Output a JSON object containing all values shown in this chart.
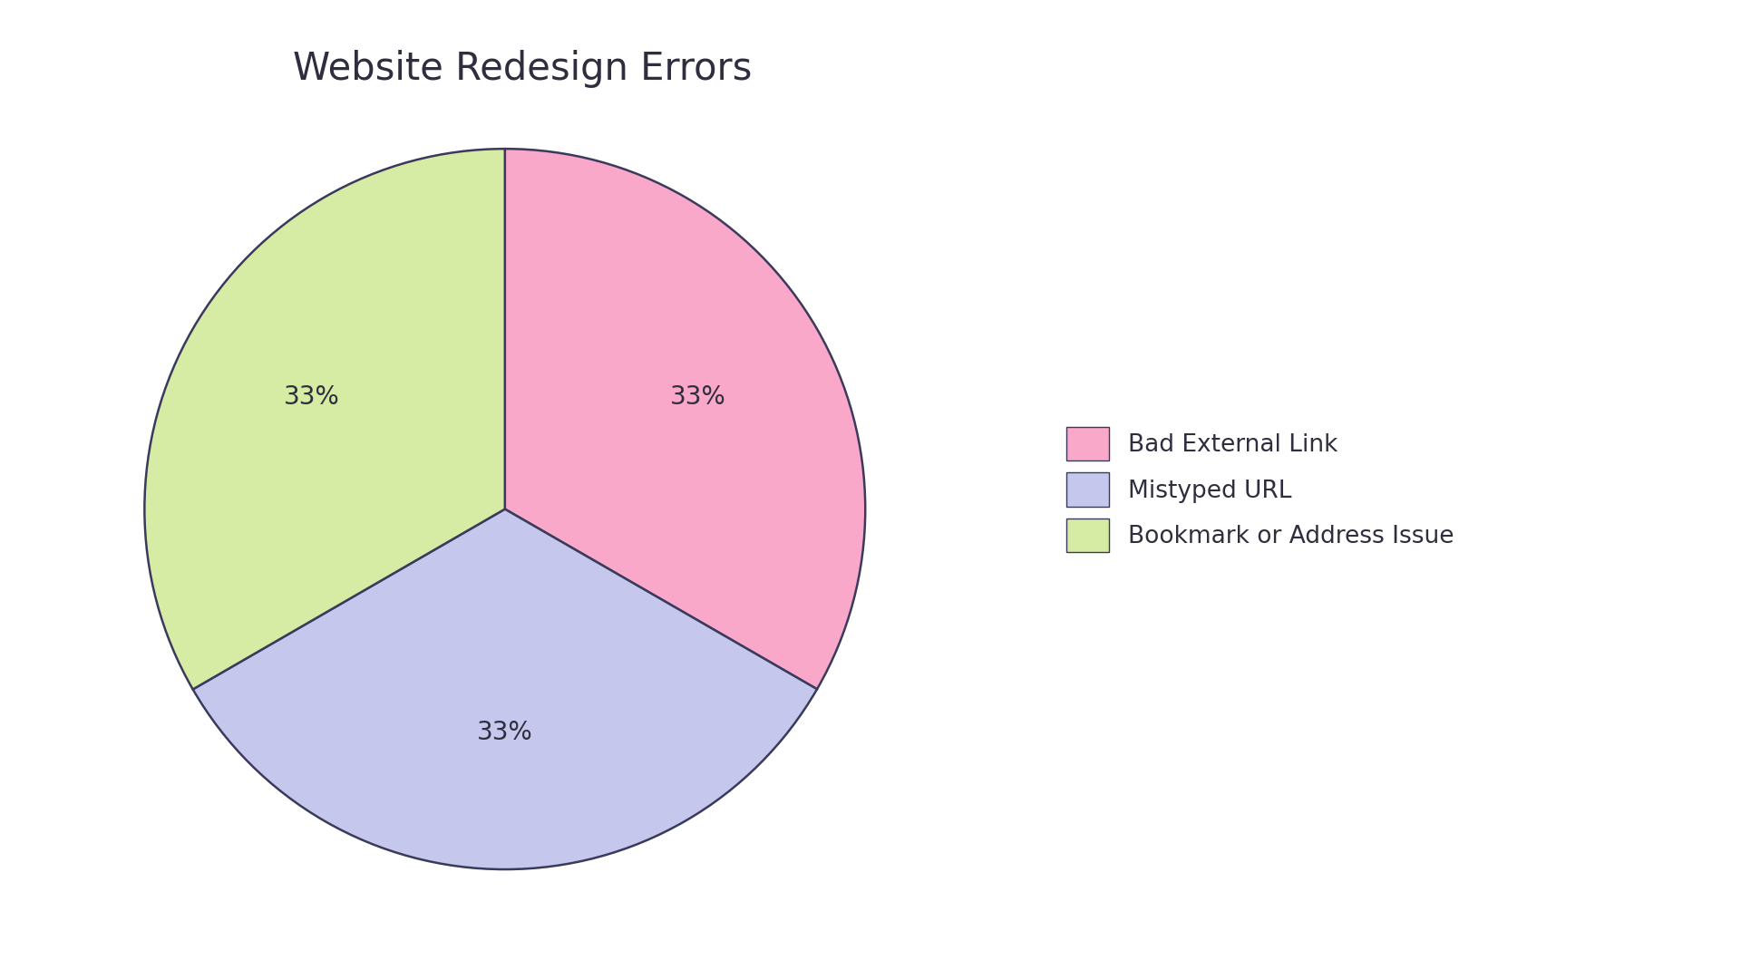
{
  "title": "Website Redesign Errors",
  "labels": [
    "Bad External Link",
    "Mistyped URL",
    "Bookmark or Address Issue"
  ],
  "values": [
    33.33,
    33.33,
    33.34
  ],
  "colors": [
    "#F9A8C9",
    "#C5C8EC",
    "#D6EBA4"
  ],
  "edge_color": "#3a3a5c",
  "edge_width": 1.8,
  "text_color": "#2e2e3e",
  "title_fontsize": 30,
  "autopct_fontsize": 20,
  "background_color": "#ffffff",
  "startangle": 90,
  "legend_fontsize": 19,
  "pctdistance": 0.62
}
